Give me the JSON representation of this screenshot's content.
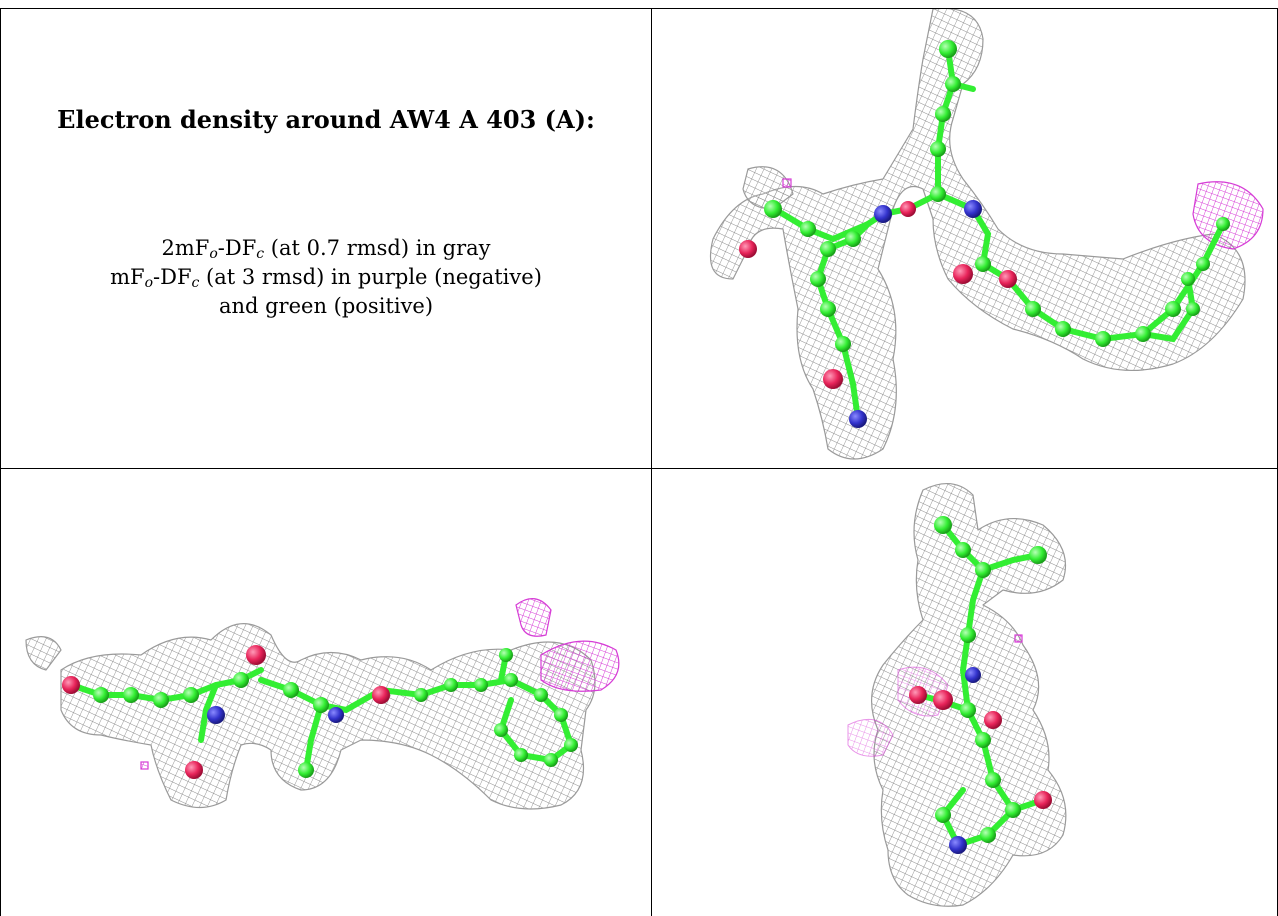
{
  "panel_text": {
    "title": "Electron density around AW4 A 403 (A):",
    "line1": {
      "a": "2mF",
      "sub1": "o",
      "b": "-DF",
      "sub2": "c",
      "c": " (at 0.7 rmsd) in gray"
    },
    "line2": {
      "a": "mF",
      "sub1": "o",
      "b": "-DF",
      "sub2": "c",
      "c": " (at 3 rmsd) in purple (negative)"
    },
    "line3": "and green (positive)"
  },
  "colors": {
    "mesh_gray": "#9a9a9a",
    "mesh_purple": "#d63cd6",
    "carbon_green": "#33ee33",
    "oxygen_red": "#e8245a",
    "nitrogen_blue": "#3333cc"
  },
  "icons": {
    "view1": "density-mesh-view",
    "view2": "density-mesh-view",
    "view3": "density-mesh-view"
  }
}
